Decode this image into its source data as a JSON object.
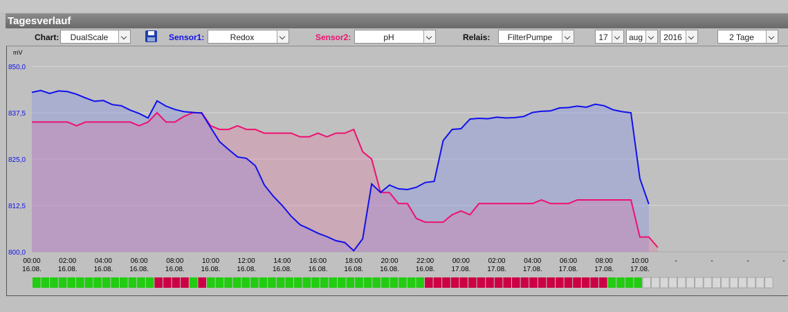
{
  "title": "Tagesverlauf",
  "toolbar": {
    "chart_label": "Chart:",
    "chart_value": "DualScale",
    "sensor1_label": "Sensor1:",
    "sensor1_value": "Redox",
    "sensor2_label": "Sensor2:",
    "sensor2_value": "pH",
    "relais_label": "Relais:",
    "relais_value": "FilterPumpe",
    "day_value": "17",
    "month_value": "aug",
    "year_value": "2016",
    "range_value": "2 Tage"
  },
  "colors": {
    "sensor1": "#1010ee",
    "sensor2": "#ee1070",
    "relay_on": "#22cc11",
    "relay_off": "#cc0044",
    "relay_none": "#d8d8d8"
  },
  "chart_data": {
    "type": "area",
    "ylabel": "mV",
    "ylim": [
      800,
      850
    ],
    "yticks": [
      "850,0",
      "837,5",
      "825,0",
      "812,5",
      "800,0"
    ],
    "ytick_values": [
      850,
      837.5,
      825,
      812.5,
      800
    ],
    "grid": true,
    "xticks": [
      {
        "time": "00:00",
        "date": "16.08."
      },
      {
        "time": "02:00",
        "date": "16.08."
      },
      {
        "time": "04:00",
        "date": "16.08."
      },
      {
        "time": "06:00",
        "date": "16.08."
      },
      {
        "time": "08:00",
        "date": "16.08."
      },
      {
        "time": "10:00",
        "date": "16.08."
      },
      {
        "time": "12:00",
        "date": "16.08."
      },
      {
        "time": "14:00",
        "date": "16.08."
      },
      {
        "time": "16:00",
        "date": "16.08."
      },
      {
        "time": "18:00",
        "date": "16.08."
      },
      {
        "time": "20:00",
        "date": "16.08."
      },
      {
        "time": "22:00",
        "date": "16.08."
      },
      {
        "time": "00:00",
        "date": "17.08."
      },
      {
        "time": "02:00",
        "date": "17.08."
      },
      {
        "time": "04:00",
        "date": "17.08."
      },
      {
        "time": "06:00",
        "date": "17.08."
      },
      {
        "time": "08:00",
        "date": "17.08."
      },
      {
        "time": "10:00",
        "date": "17.08."
      }
    ],
    "extra_ticks": [
      "-",
      "-",
      "-",
      "-"
    ],
    "x_hours": 48,
    "series": [
      {
        "name": "Redox",
        "x": [
          0,
          0.5,
          1,
          1.5,
          2,
          2.5,
          3,
          3.5,
          4,
          4.5,
          5,
          5.5,
          6,
          6.5,
          7,
          7.5,
          8,
          8.5,
          9,
          9.5,
          10,
          10.5,
          11,
          11.5,
          12,
          12.5,
          13,
          13.5,
          14,
          14.5,
          15,
          15.5,
          16,
          16.5,
          17,
          17.5,
          18,
          18.5,
          19,
          19.5,
          20,
          20.5,
          21,
          21.5,
          22,
          22.5,
          23,
          23.5,
          24,
          24.5,
          25,
          25.5,
          26,
          26.5,
          27,
          27.5,
          28,
          28.5,
          29,
          29.5,
          30,
          30.5,
          31,
          31.5,
          32,
          32.5,
          33,
          33.5,
          34,
          34.5
        ],
        "values": [
          843.0,
          843.5,
          842.7,
          843.4,
          843.2,
          842.5,
          841.5,
          840.6,
          840.8,
          839.7,
          839.4,
          838.2,
          837.3,
          836.1,
          840.7,
          839.3,
          838.4,
          837.8,
          837.6,
          837.4,
          833.5,
          829.7,
          827.6,
          825.6,
          825.2,
          823.2,
          818.0,
          815.0,
          812.5,
          809.6,
          807.3,
          806.2,
          805.0,
          804.1,
          803.0,
          802.5,
          800.3,
          803.5,
          818.3,
          816.0,
          818.0,
          817.0,
          816.8,
          817.4,
          818.7,
          819.0,
          830.0,
          833.0,
          833.2,
          835.8,
          836.0,
          835.9,
          836.3,
          836.1,
          836.2,
          836.5,
          837.6,
          837.9,
          838.0,
          838.8,
          838.9,
          839.3,
          839.0,
          839.8,
          839.4,
          838.3,
          837.8,
          837.5,
          819.8,
          812.9
        ],
        "color": "#1010ee"
      },
      {
        "name": "pH",
        "x": [
          0,
          0.5,
          1,
          1.5,
          2,
          2.5,
          3,
          3.5,
          4,
          4.5,
          5,
          5.5,
          6,
          6.5,
          7,
          7.5,
          8,
          8.5,
          9,
          9.5,
          10,
          10.5,
          11,
          11.5,
          12,
          12.5,
          13,
          13.5,
          14,
          14.5,
          15,
          15.5,
          16,
          16.5,
          17,
          17.5,
          18,
          18.5,
          19,
          19.5,
          20,
          20.5,
          21,
          21.5,
          22,
          22.5,
          23,
          23.5,
          24,
          24.5,
          25,
          25.5,
          26,
          26.5,
          27,
          27.5,
          28,
          28.5,
          29,
          29.5,
          30,
          30.5,
          31,
          31.5,
          32,
          32.5,
          33,
          33.5,
          34,
          34.5
        ],
        "values": [
          835.0,
          835.0,
          835.0,
          835.0,
          835.0,
          834.0,
          835.0,
          835.0,
          835.0,
          835.0,
          835.0,
          835.0,
          834.0,
          835.0,
          837.5,
          835.0,
          835.0,
          836.5,
          837.5,
          837.5,
          834.0,
          833.0,
          833.0,
          834.0,
          833.0,
          833.0,
          832.0,
          832.0,
          832.0,
          832.0,
          831.0,
          831.0,
          832.0,
          831.0,
          832.0,
          832.0,
          833.0,
          827.0,
          825.0,
          816.0,
          816.0,
          813.0,
          813.0,
          809.0,
          808.0,
          808.0,
          808.0,
          810.0,
          811.0,
          810.0,
          813.0,
          813.0,
          813.0,
          813.0,
          813.0,
          813.0,
          813.0,
          814.0,
          813.0,
          813.0,
          813.0,
          814.0,
          814.0,
          814.0,
          814.0,
          814.0,
          814.0,
          814.0,
          804.0,
          804.0
        ],
        "color": "#ee1070"
      }
    ],
    "pH_tail": [
      804.0,
      801.2
    ],
    "relay_states": "000000000000000000000000000000000000000000000000000000000000000000000000000000000000000000000000000000000000000000000000000000000000000000000000000000000000000"
  },
  "relay": {
    "segments": [
      {
        "state": "on",
        "count": 14
      },
      {
        "state": "off",
        "count": 4
      },
      {
        "state": "on",
        "count": 1
      },
      {
        "state": "off",
        "count": 1
      },
      {
        "state": "on",
        "count": 25
      },
      {
        "state": "off",
        "count": 21
      },
      {
        "state": "on",
        "count": 4
      },
      {
        "state": "none",
        "count": 15
      }
    ]
  }
}
